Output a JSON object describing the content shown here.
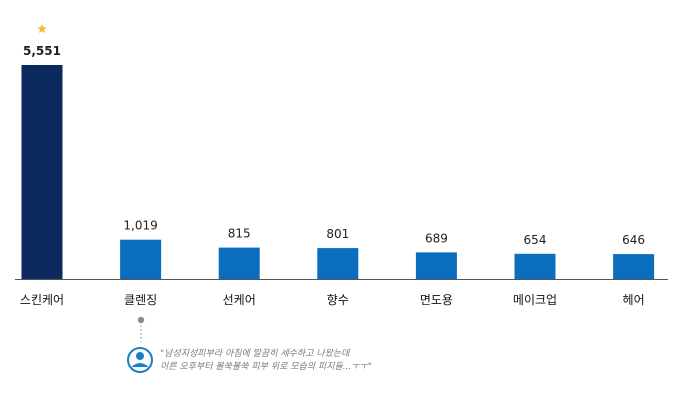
{
  "chart_data": {
    "type": "bar",
    "categories": [
      "스킨케어",
      "클렌징",
      "선케어",
      "향수",
      "면도용",
      "메이크업",
      "헤어"
    ],
    "values": [
      5551,
      1019,
      815,
      801,
      689,
      654,
      646
    ],
    "value_labels": [
      "5,551",
      "1,019",
      "815",
      "801",
      "689",
      "654",
      "646"
    ],
    "ylim": [
      0,
      5551
    ],
    "grid": false,
    "highlight_index": 0,
    "colors": {
      "highlight": "#0d2a5e",
      "bar": "#0b6dbd",
      "star": "#f5b82e",
      "axis": "#555555",
      "accent": "#1a7fc4"
    }
  },
  "annotation": {
    "category_index": 1,
    "icon": "user-icon",
    "quote_line1": "\"남성지성피부라 아침에 말끔히 세수하고 나왔는데",
    "quote_line2": "이른 오후부터 볼쑥볼쑥 피부 위로 모습의 피지들...ㅜㅜ\""
  }
}
